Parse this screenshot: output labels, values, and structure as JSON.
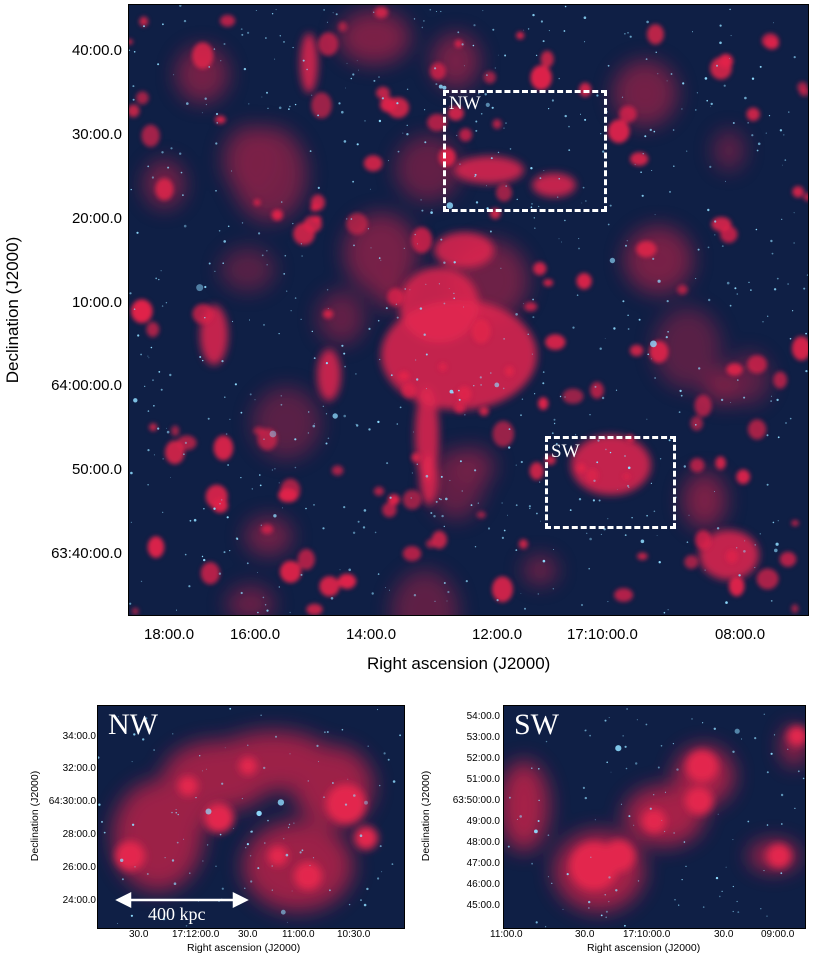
{
  "main_panel": {
    "ylabel": "Declination (J2000)",
    "xlabel": "Right ascension (J2000)",
    "y_ticks": [
      "40:00.0",
      "30:00.0",
      "20:00.0",
      "10:00.0",
      "64:00:00.0",
      "50:00.0",
      "63:40:00.0"
    ],
    "x_ticks": [
      "18:00.0",
      "16:00.0",
      "14:00.0",
      "12:00.0",
      "17:10:00.0",
      "08:00.0"
    ],
    "regions": [
      {
        "label": "NW"
      },
      {
        "label": "SW"
      }
    ]
  },
  "nw_panel": {
    "label": "NW",
    "ylabel": "Declination (J2000)",
    "xlabel": "Right ascension (J2000)",
    "y_ticks": [
      "34:00.0",
      "32:00.0",
      "64:30:00.0",
      "28:00.0",
      "26:00.0",
      "24:00.0"
    ],
    "x_ticks": [
      "30.0",
      "17:12:00.0",
      "30.0",
      "11:00.0",
      "10:30.0"
    ],
    "scale_bar": "400 kpc"
  },
  "sw_panel": {
    "label": "SW",
    "ylabel": "Declination (J2000)",
    "xlabel": "Right ascension (J2000)",
    "y_ticks": [
      "54:00.0",
      "53:00.0",
      "52:00.0",
      "51:00.0",
      "63:50:00.0",
      "49:00.0",
      "48:00.0",
      "47:00.0",
      "46:00.0",
      "45:00.0"
    ],
    "x_ticks": [
      "11:00.0",
      "30.0",
      "17:10:00.0",
      "30.0",
      "09:00.0"
    ]
  },
  "colors": {
    "background": "#0f1f45",
    "radio_emission": "#e0234a",
    "stars": "#7fd7ff",
    "overlay": "#ffffff"
  }
}
